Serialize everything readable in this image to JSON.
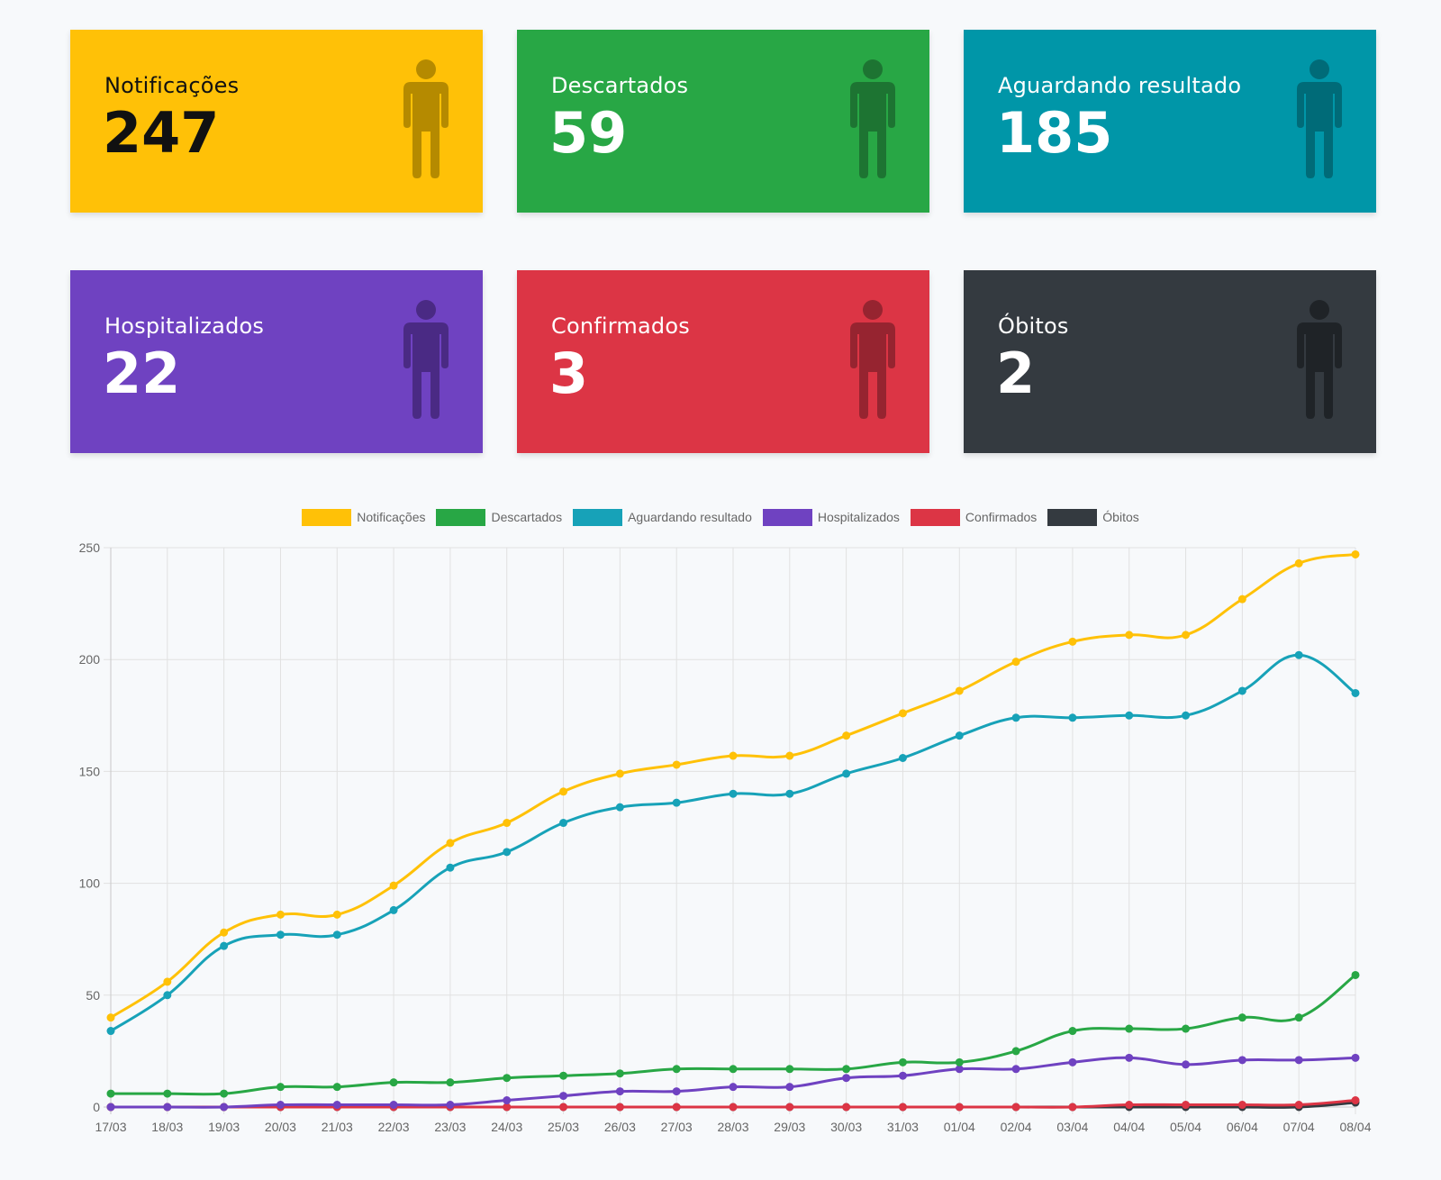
{
  "cards": [
    {
      "label": "Notificações",
      "value": "247",
      "bg": "#ffc107",
      "text": "#111111",
      "icon": "#b58a00"
    },
    {
      "label": "Descartados",
      "value": "59",
      "bg": "#28a745",
      "text": "#ffffff",
      "icon": "#1d7432"
    },
    {
      "label": "Aguardando resultado",
      "value": "185",
      "bg": "#0096a8",
      "text": "#ffffff",
      "icon": "#006b78"
    },
    {
      "label": "Hospitalizados",
      "value": "22",
      "bg": "#6f42c1",
      "text": "#ffffff",
      "icon": "#4a2a84"
    },
    {
      "label": "Confirmados",
      "value": "3",
      "bg": "#dc3545",
      "text": "#ffffff",
      "icon": "#962430"
    },
    {
      "label": "Óbitos",
      "value": "2",
      "bg": "#343a40",
      "text": "#ffffff",
      "icon": "#1f2327"
    }
  ],
  "chart_data": {
    "type": "line",
    "categories": [
      "17/03",
      "18/03",
      "19/03",
      "20/03",
      "21/03",
      "22/03",
      "23/03",
      "24/03",
      "25/03",
      "26/03",
      "27/03",
      "28/03",
      "29/03",
      "30/03",
      "31/03",
      "01/04",
      "02/04",
      "03/04",
      "04/04",
      "05/04",
      "06/04",
      "07/04",
      "08/04"
    ],
    "ylim": [
      0,
      250
    ],
    "yticks": [
      0,
      50,
      100,
      150,
      200,
      250
    ],
    "grid": true,
    "legend": "top-center",
    "series": [
      {
        "name": "Notificações",
        "color": "#ffc107",
        "values": [
          40,
          56,
          78,
          86,
          86,
          99,
          118,
          127,
          141,
          149,
          153,
          157,
          157,
          166,
          176,
          186,
          199,
          208,
          211,
          211,
          227,
          243,
          247
        ]
      },
      {
        "name": "Descartados",
        "color": "#28a745",
        "values": [
          6,
          6,
          6,
          9,
          9,
          11,
          11,
          13,
          14,
          15,
          17,
          17,
          17,
          17,
          20,
          20,
          25,
          34,
          35,
          35,
          40,
          40,
          59
        ]
      },
      {
        "name": "Aguardando resultado",
        "color": "#17a2b8",
        "values": [
          34,
          50,
          72,
          77,
          77,
          88,
          107,
          114,
          127,
          134,
          136,
          140,
          140,
          149,
          156,
          166,
          174,
          174,
          175,
          175,
          186,
          202,
          185
        ]
      },
      {
        "name": "Hospitalizados",
        "color": "#6f42c1",
        "values": [
          0,
          0,
          0,
          1,
          1,
          1,
          1,
          3,
          5,
          7,
          7,
          9,
          9,
          13,
          14,
          17,
          17,
          20,
          22,
          19,
          21,
          21,
          22
        ]
      },
      {
        "name": "Confirmados",
        "color": "#dc3545",
        "values": [
          0,
          0,
          0,
          0,
          0,
          0,
          0,
          0,
          0,
          0,
          0,
          0,
          0,
          0,
          0,
          0,
          0,
          0,
          1,
          1,
          1,
          1,
          3
        ]
      },
      {
        "name": "Óbitos",
        "color": "#343a40",
        "values": [
          0,
          0,
          0,
          0,
          0,
          0,
          0,
          0,
          0,
          0,
          0,
          0,
          0,
          0,
          0,
          0,
          0,
          0,
          0,
          0,
          0,
          0,
          2
        ]
      }
    ]
  }
}
